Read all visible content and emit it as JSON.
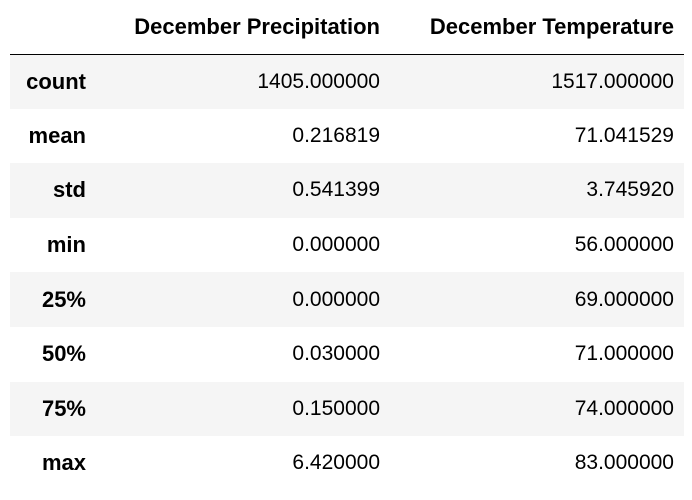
{
  "table": {
    "columns": [
      "",
      "December Precipitation",
      "December Temperature"
    ],
    "rows": [
      {
        "label": "count",
        "prcp": "1405.000000",
        "temp": "1517.000000"
      },
      {
        "label": "mean",
        "prcp": "0.216819",
        "temp": "71.041529"
      },
      {
        "label": "std",
        "prcp": "0.541399",
        "temp": "3.745920"
      },
      {
        "label": "min",
        "prcp": "0.000000",
        "temp": "56.000000"
      },
      {
        "label": "25%",
        "prcp": "0.000000",
        "temp": "69.000000"
      },
      {
        "label": "50%",
        "prcp": "0.030000",
        "temp": "71.000000"
      },
      {
        "label": "75%",
        "prcp": "0.150000",
        "temp": "74.000000"
      },
      {
        "label": "max",
        "prcp": "6.420000",
        "temp": "83.000000"
      }
    ]
  }
}
